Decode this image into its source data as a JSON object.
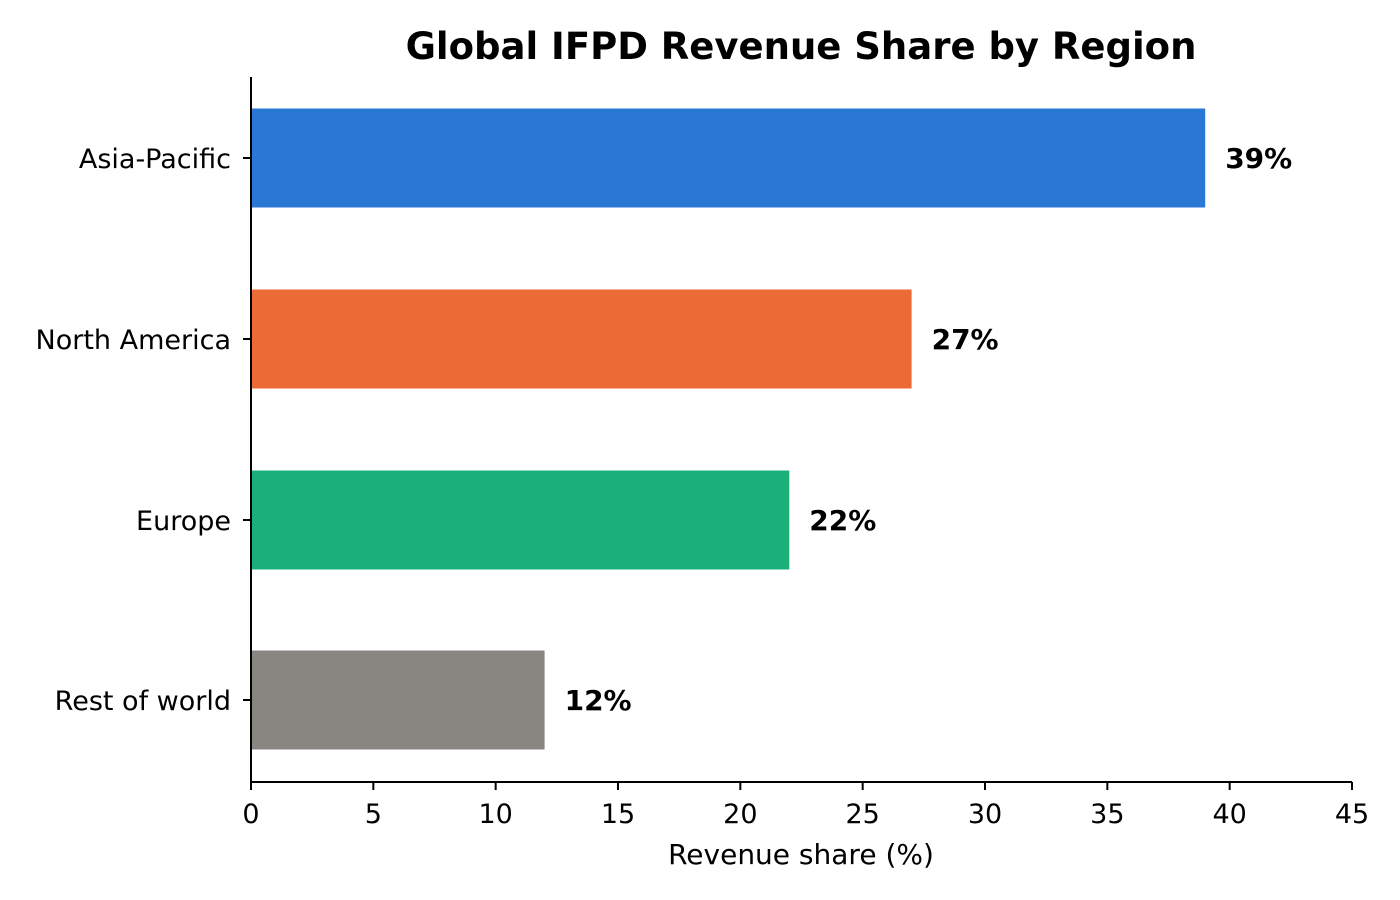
{
  "chart_data": {
    "type": "bar",
    "orientation": "horizontal",
    "title": "Global IFPD Revenue Share by Region",
    "xlabel": "Revenue share (%)",
    "ylabel": "",
    "categories": [
      "Asia-Pacific",
      "North America",
      "Europe",
      "Rest of world"
    ],
    "values": [
      39,
      27,
      22,
      12
    ],
    "data_labels": [
      "39%",
      "27%",
      "22%",
      "12%"
    ],
    "colors": [
      "#2a78d6",
      "#eb6a36",
      "#1bb07a",
      "#878681"
    ],
    "xlim": [
      0,
      45
    ],
    "xticks": [
      0,
      5,
      10,
      15,
      20,
      25,
      30,
      35,
      40,
      45
    ],
    "grid": false,
    "legend": "none"
  }
}
